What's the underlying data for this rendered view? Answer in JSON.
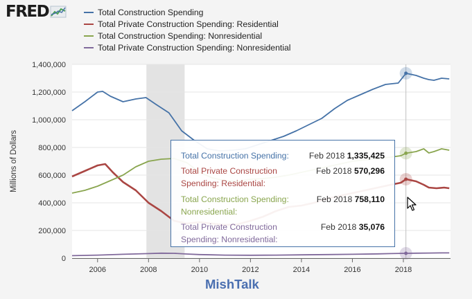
{
  "logo": {
    "text": "FRED",
    "icon": "fred-chart-icon"
  },
  "chart_data": {
    "type": "line",
    "title": "",
    "xlabel": "",
    "ylabel": "Millions of Dollars",
    "xlim": [
      2005.0,
      2019.85
    ],
    "ylim": [
      0,
      1400000
    ],
    "yticks": [
      0,
      200000,
      400000,
      600000,
      800000,
      1000000,
      1200000,
      1400000
    ],
    "ytick_labels": [
      "0",
      "200,000",
      "400,000",
      "600,000",
      "800,000",
      "1,000,000",
      "1,200,000",
      "1,400,000"
    ],
    "xticks": [
      2006,
      2008,
      2010,
      2012,
      2014,
      2016,
      2018
    ],
    "xtick_labels": [
      "2006",
      "2008",
      "2010",
      "2012",
      "2014",
      "2016",
      "2018"
    ],
    "grid": true,
    "legend_position": "top",
    "recession": [
      2007.917,
      2009.417
    ],
    "series": [
      {
        "name": "Total Construction Spending",
        "color": "#4572a7",
        "x": [
          2005.0,
          2005.5,
          2006.0,
          2006.2,
          2006.5,
          2007.0,
          2007.5,
          2007.9,
          2008.3,
          2008.8,
          2009.3,
          2009.8,
          2010.3,
          2010.8,
          2011.3,
          2011.8,
          2012.3,
          2012.8,
          2013.3,
          2013.8,
          2014.3,
          2014.8,
          2015.3,
          2015.8,
          2016.3,
          2016.8,
          2017.3,
          2017.8,
          2018.1,
          2018.5,
          2018.8,
          2019.0,
          2019.2,
          2019.5,
          2019.8
        ],
        "y": [
          1065000,
          1130000,
          1200000,
          1205000,
          1170000,
          1130000,
          1150000,
          1160000,
          1110000,
          1050000,
          920000,
          850000,
          790000,
          775000,
          780000,
          790000,
          820000,
          850000,
          880000,
          920000,
          965000,
          1010000,
          1080000,
          1140000,
          1180000,
          1220000,
          1255000,
          1265000,
          1335425,
          1320000,
          1300000,
          1290000,
          1285000,
          1300000,
          1295000
        ]
      },
      {
        "name": "Total Private Construction Spending: Residential",
        "color": "#aa4643",
        "x": [
          2005.0,
          2005.5,
          2006.0,
          2006.3,
          2006.6,
          2007.0,
          2007.5,
          2008.0,
          2008.5,
          2009.0,
          2009.5,
          2010.0,
          2010.5,
          2011.0,
          2011.5,
          2012.0,
          2012.5,
          2013.0,
          2013.5,
          2014.0,
          2014.5,
          2015.0,
          2015.5,
          2016.0,
          2016.5,
          2017.0,
          2017.5,
          2017.9,
          2018.1,
          2018.5,
          2018.8,
          2019.0,
          2019.3,
          2019.6,
          2019.8
        ],
        "y": [
          590000,
          630000,
          670000,
          680000,
          620000,
          550000,
          490000,
          400000,
          340000,
          270000,
          250000,
          260000,
          250000,
          240000,
          245000,
          270000,
          300000,
          340000,
          370000,
          380000,
          400000,
          430000,
          450000,
          470000,
          490000,
          510000,
          530000,
          545000,
          570296,
          555000,
          530000,
          510000,
          505000,
          510000,
          505000
        ]
      },
      {
        "name": "Total Construction Spending: Nonresidential",
        "color": "#89a54e",
        "x": [
          2005.0,
          2005.5,
          2006.0,
          2006.5,
          2007.0,
          2007.5,
          2008.0,
          2008.5,
          2009.0,
          2009.5,
          2010.0,
          2010.5,
          2011.0,
          2011.5,
          2012.0,
          2012.5,
          2013.0,
          2013.5,
          2014.0,
          2014.5,
          2015.0,
          2015.5,
          2016.0,
          2016.5,
          2017.0,
          2017.5,
          2017.9,
          2018.1,
          2018.5,
          2018.8,
          2019.0,
          2019.2,
          2019.5,
          2019.8
        ],
        "y": [
          470000,
          490000,
          520000,
          560000,
          600000,
          660000,
          700000,
          715000,
          720000,
          690000,
          620000,
          580000,
          560000,
          555000,
          570000,
          575000,
          585000,
          600000,
          620000,
          640000,
          660000,
          680000,
          700000,
          710000,
          720000,
          730000,
          740000,
          758110,
          770000,
          790000,
          760000,
          770000,
          790000,
          780000
        ]
      },
      {
        "name": "Total Private Construction Spending: Nonresidential",
        "color": "#80699b",
        "x": [
          2005.0,
          2006.0,
          2007.0,
          2008.0,
          2008.5,
          2009.0,
          2009.5,
          2010.0,
          2010.5,
          2011.0,
          2012.0,
          2013.0,
          2014.0,
          2015.0,
          2016.0,
          2017.0,
          2017.5,
          2018.1,
          2018.5,
          2019.0,
          2019.5,
          2019.8
        ],
        "y": [
          18000,
          22000,
          28000,
          33000,
          36000,
          35000,
          30000,
          26000,
          24000,
          22000,
          21000,
          22000,
          24000,
          26000,
          28000,
          31000,
          33000,
          35076,
          36000,
          37000,
          38000,
          38000
        ]
      }
    ],
    "hover_x": 2018.1
  },
  "tooltip": {
    "rows": [
      {
        "name": "Total Construction Spending:",
        "date": "Feb 2018",
        "value": "1,335,425",
        "color": "#4572a7"
      },
      {
        "name": "Total Private Construction Spending: Residential:",
        "date": "Feb 2018",
        "value": "570,296",
        "color": "#aa4643"
      },
      {
        "name": "Total Construction Spending: Nonresidential:",
        "date": "Feb 2018",
        "value": "758,110",
        "color": "#89a54e"
      },
      {
        "name": "Total Private Construction Spending: Nonresidential:",
        "date": "Feb 2018",
        "value": "35,076",
        "color": "#80699b"
      }
    ]
  },
  "watermark": "MishTalk",
  "cursor_icon": "mouse-pointer-icon"
}
